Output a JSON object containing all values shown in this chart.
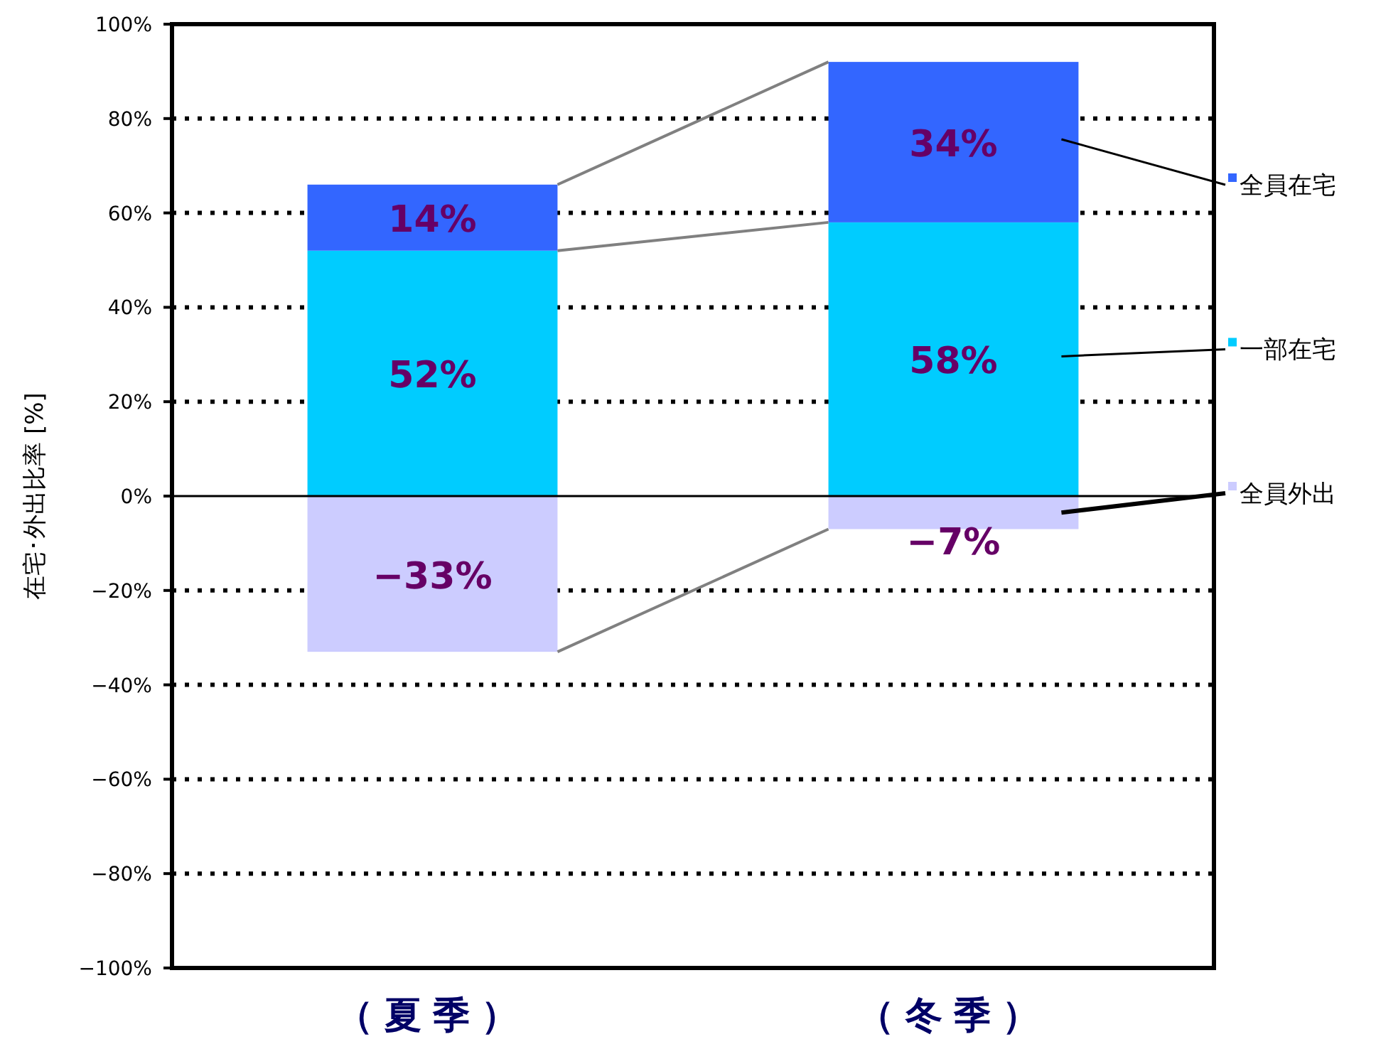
{
  "chart_data": {
    "type": "bar",
    "stacked": true,
    "ylabel": "在宅･外出比率 [%]",
    "categories": [
      "（夏季）",
      "（冬季）"
    ],
    "series": [
      {
        "name": "全員外出",
        "color": "#ccccff",
        "values": [
          -33,
          -7
        ],
        "value_labels": [
          "−33%",
          "−7%"
        ]
      },
      {
        "name": "一部在宅",
        "color": "#00ccff",
        "values": [
          52,
          58
        ],
        "value_labels": [
          "52%",
          "58%"
        ]
      },
      {
        "name": "全員在宅",
        "color": "#3366ff",
        "values": [
          14,
          34
        ],
        "value_labels": [
          "14%",
          "34%"
        ]
      }
    ],
    "ylim": [
      -100,
      100
    ],
    "yticks": [
      {
        "value": -100,
        "label": "−100%"
      },
      {
        "value": -80,
        "label": "−80%"
      },
      {
        "value": -60,
        "label": "−60%"
      },
      {
        "value": -40,
        "label": "−40%"
      },
      {
        "value": -20,
        "label": "−20%"
      },
      {
        "value": 0,
        "label": "0%"
      },
      {
        "value": 20,
        "label": "20%"
      },
      {
        "value": 40,
        "label": "40%"
      },
      {
        "value": 60,
        "label": "60%"
      },
      {
        "value": 80,
        "label": "80%"
      },
      {
        "value": 100,
        "label": "100%"
      }
    ],
    "grid": "y",
    "legend": "right"
  }
}
